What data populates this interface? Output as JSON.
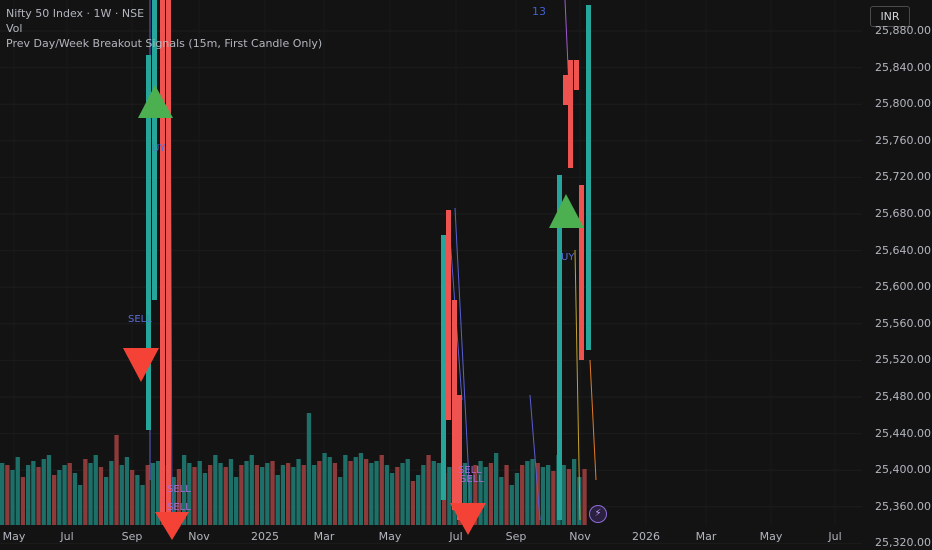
{
  "legend": {
    "symbol": "Nifty 50 Index · 1W · NSE",
    "vol": "Vol",
    "indicator": "Prev Day/Week Breakout Signals (15m, First Candle Only)"
  },
  "currency": "INR",
  "top_label": "13",
  "price_axis": [
    "25,880.00",
    "25,840.00",
    "25,800.00",
    "25,760.00",
    "25,720.00",
    "25,680.00",
    "25,640.00",
    "25,600.00",
    "25,560.00",
    "25,520.00",
    "25,480.00",
    "25,440.00",
    "25,400.00",
    "25,360.00",
    "25,320.00"
  ],
  "time_axis": [
    "May",
    "Jul",
    "Sep",
    "Nov",
    "2025",
    "Mar",
    "May",
    "Jul",
    "Sep",
    "Nov",
    "2026",
    "Mar",
    "May",
    "Jul"
  ],
  "signal_labels": {
    "buy1": "UY",
    "buy2": "UY",
    "sell1": "SELL",
    "sell2": "SELL",
    "sell3": "SELL",
    "sell4": "SELL",
    "sell5": "SELL"
  },
  "colors": {
    "bg": "#131313",
    "up": "#26a69a",
    "down": "#ef5350",
    "vol_up": "#1e6f68",
    "vol_down": "#8c3a3a",
    "buy_marker": "#4caf50",
    "sell_marker": "#f44336",
    "signal_text": "#5a6cd8",
    "sell_text": "#b06ad8"
  },
  "icons": {
    "bolt": "lightning-icon"
  }
}
